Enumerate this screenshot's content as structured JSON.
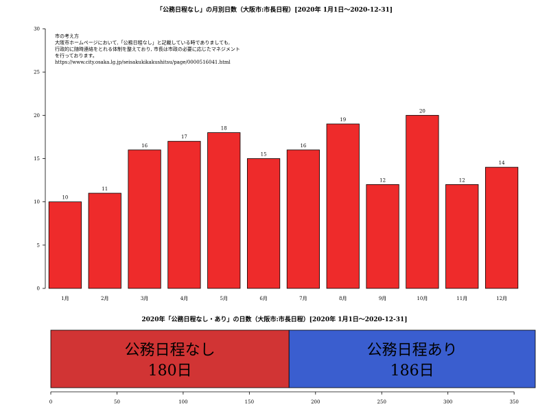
{
  "chart_data": [
    {
      "type": "bar",
      "title": "「公務日程なし」の月別日数（大阪市:市長日程）[2020年 1月1日〜2020-12-31]",
      "categories": [
        "1月",
        "2月",
        "3月",
        "4月",
        "5月",
        "6月",
        "7月",
        "8月",
        "9月",
        "10月",
        "11月",
        "12月"
      ],
      "values": [
        10,
        11,
        16,
        17,
        18,
        15,
        16,
        19,
        12,
        20,
        12,
        14
      ],
      "ylim": [
        0,
        30
      ],
      "yticks": [
        0,
        5,
        10,
        15,
        20,
        25,
        30
      ],
      "bar_color": "#ee2b2b",
      "grid": false,
      "annotation": [
        "市の考え方",
        "大阪市ホームページにおいて,「公務日程なし」と記載している時でありましても,",
        "行政的に随時連絡をとれる体制を整えており, 市長は市政の必要に応じたマネジメント",
        "を行っております。",
        "https://www.city.osaka.lg.jp/seisakukikakushitsu/page/0000516041.html"
      ]
    },
    {
      "type": "bar",
      "orientation": "horizontal-stacked",
      "title": "2020年「公務日程なし・あり」の日数（大阪市:市長日程）[2020年 1月1日〜2020-12-31]",
      "xlim": [
        0,
        366
      ],
      "xticks": [
        0,
        50,
        100,
        150,
        200,
        250,
        300,
        350
      ],
      "segments": [
        {
          "label": "公務日程なし",
          "value": 180,
          "value_label": "180日",
          "color": "#d13434"
        },
        {
          "label": "公務日程あり",
          "value": 186,
          "value_label": "186日",
          "color": "#3a5ecf"
        }
      ]
    }
  ]
}
